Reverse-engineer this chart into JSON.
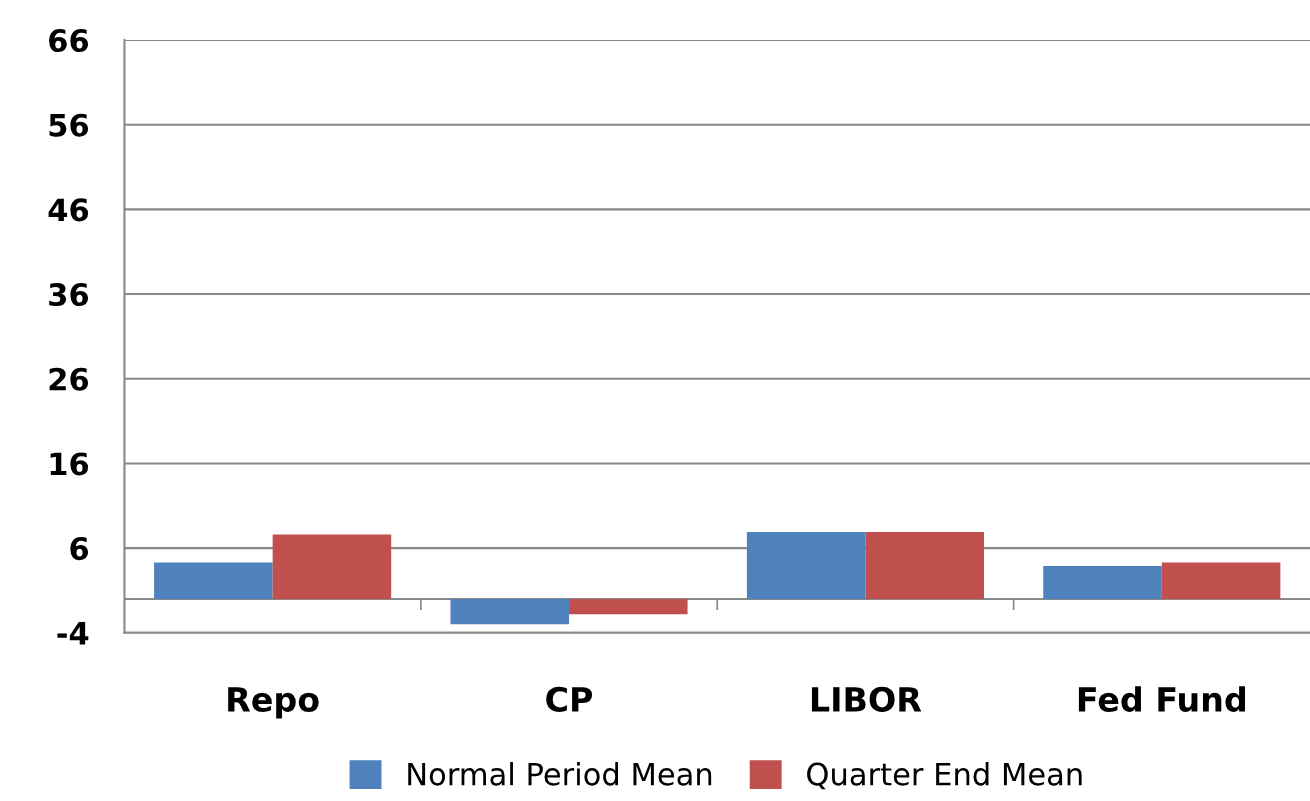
{
  "chart_data": {
    "type": "bar",
    "categories": [
      "Repo",
      "CP",
      "LIBOR",
      "Fed Fund"
    ],
    "series": [
      {
        "name": "Normal Period Mean",
        "color": "#4f81bd",
        "values": [
          4.3,
          -3.0,
          7.9,
          3.9
        ]
      },
      {
        "name": "Quarter End Mean",
        "color": "#c0504d",
        "values": [
          7.6,
          -1.8,
          7.9,
          4.3
        ]
      }
    ],
    "ylim": [
      -4,
      66
    ],
    "yticks": [
      -4,
      6,
      16,
      26,
      36,
      46,
      56,
      66
    ],
    "grid": "y",
    "legend": "bottom"
  }
}
